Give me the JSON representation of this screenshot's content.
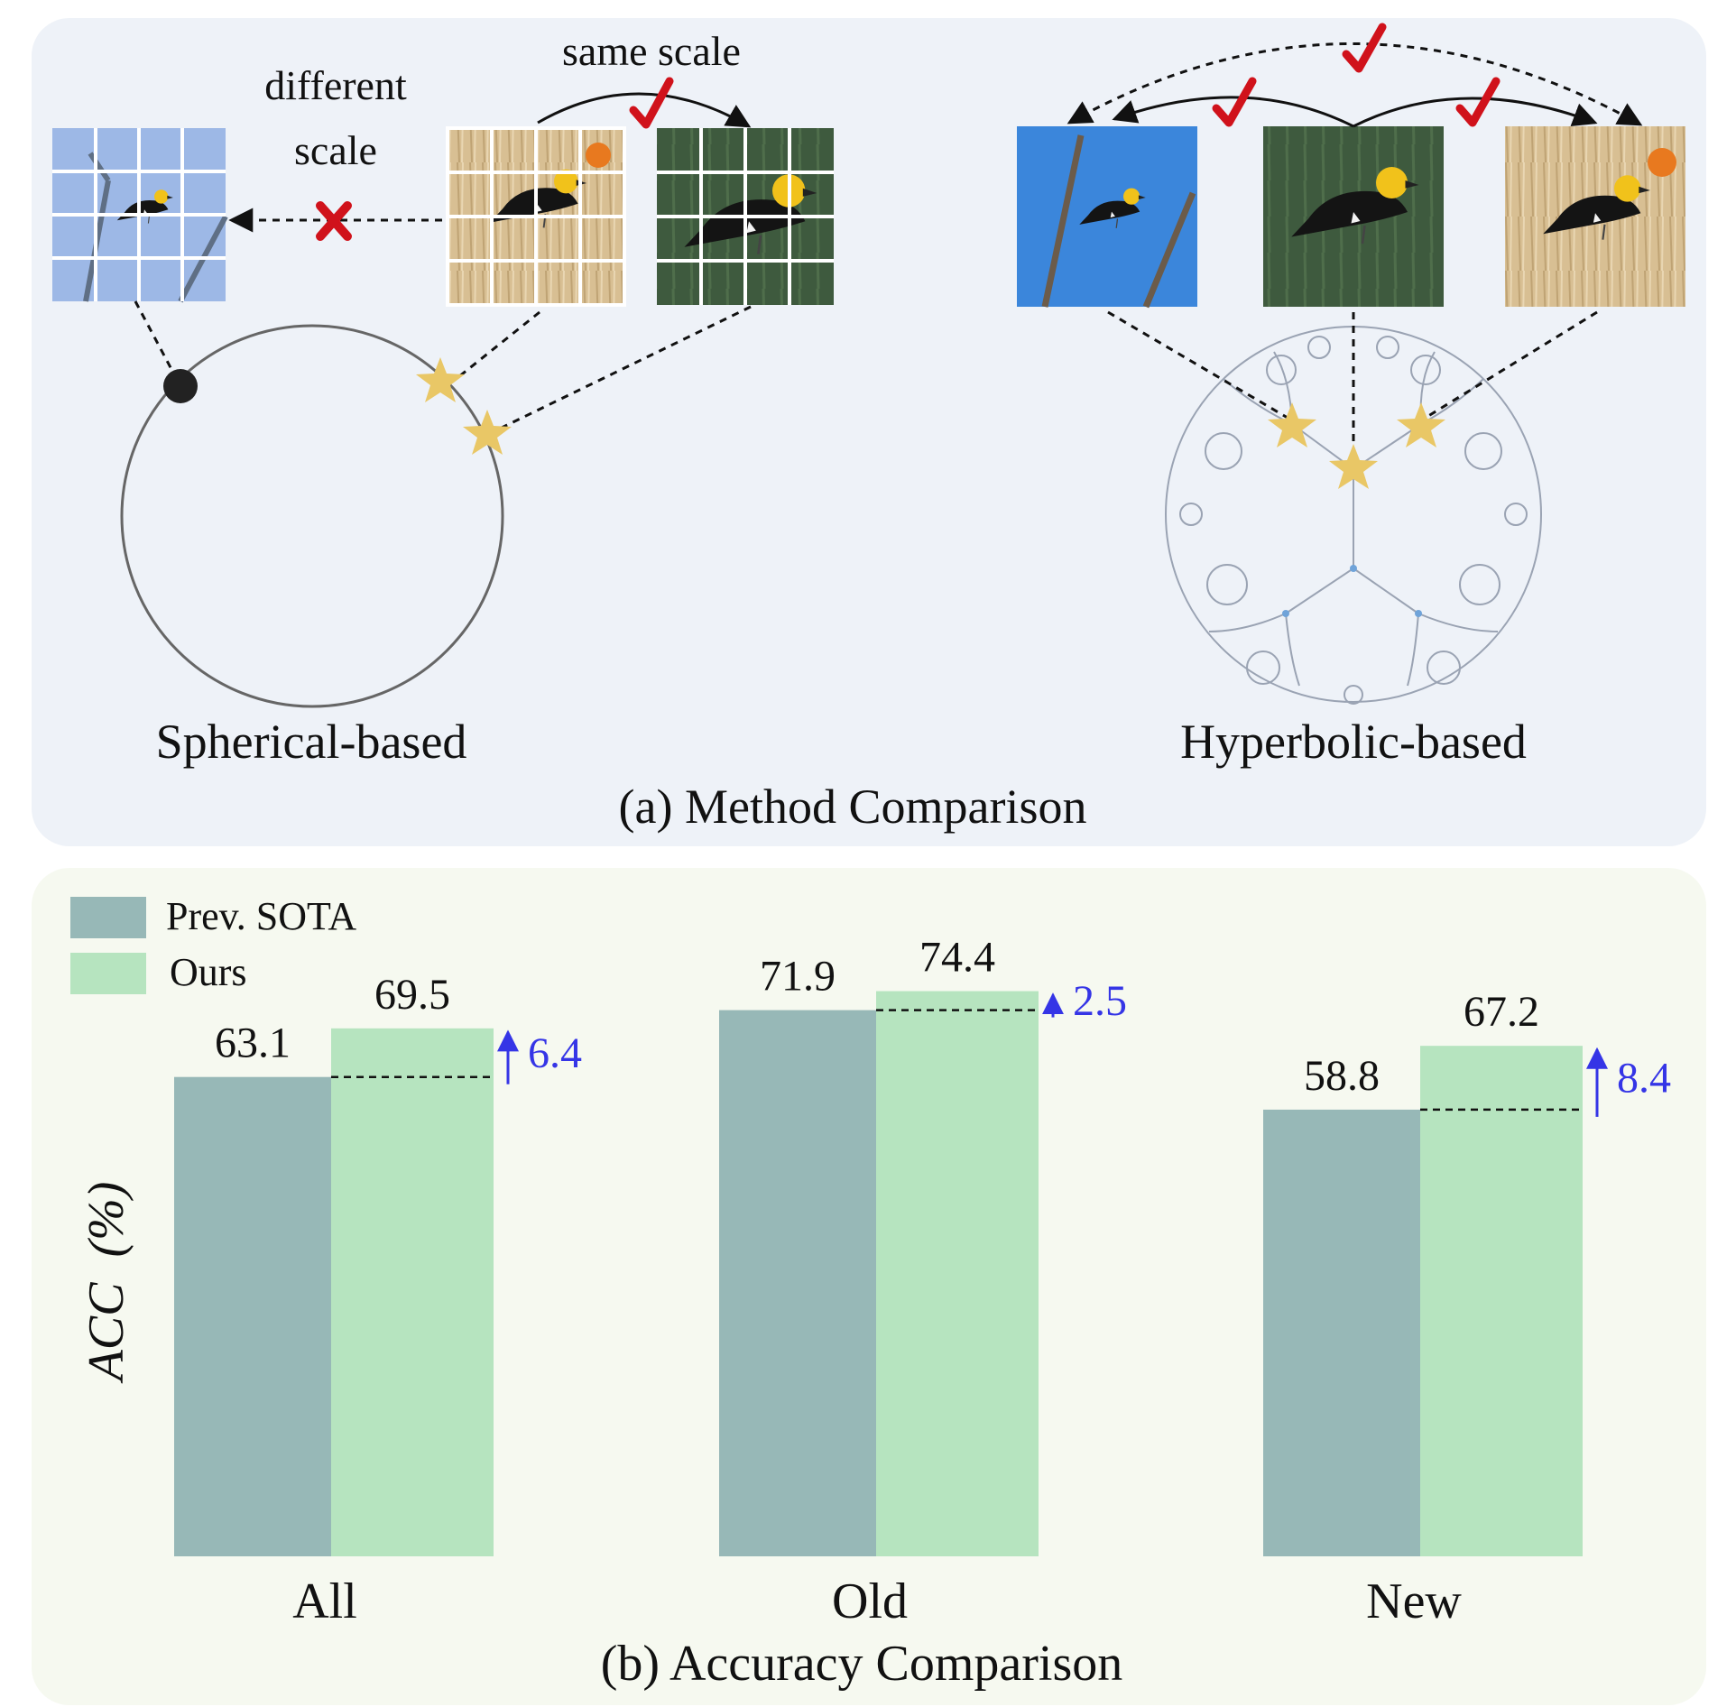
{
  "panel_a": {
    "caption": "(a) Method Comparison",
    "spherical": {
      "label": "Spherical-based",
      "different_scale_line1": "different",
      "different_scale_line2": "scale",
      "same_scale": "same scale"
    },
    "hyperbolic": {
      "label": "Hyperbolic-based"
    },
    "colors": {
      "panel_bg": "#eef2f8",
      "star": "#e9c766",
      "check": "#d0121b",
      "cross": "#d0121b",
      "grid_blue": "#9db8e6"
    },
    "icons": [
      "check-icon",
      "cross-icon",
      "star-icon",
      "bird-image",
      "dot-icon"
    ]
  },
  "panel_b": {
    "caption": "(b) Accuracy Comparison",
    "colors": {
      "panel_bg": "#f6f9f0",
      "prev": "#97b8b7",
      "ours": "#b6e4bf",
      "gain": "#3535e6"
    },
    "chart_data": {
      "type": "bar",
      "categories": [
        "All",
        "Old",
        "New"
      ],
      "ylabel": "ACC  (%)",
      "series": [
        {
          "name": "Prev. SOTA",
          "values": [
            63.1,
            71.9,
            58.8
          ],
          "labels": [
            "63.1",
            "71.9",
            "58.8"
          ]
        },
        {
          "name": "Ours",
          "values": [
            69.5,
            74.4,
            67.2
          ],
          "labels": [
            "69.5",
            "74.4",
            "67.2"
          ]
        }
      ],
      "gains": [
        "6.4",
        "2.5",
        "8.4"
      ],
      "legend_position": "top-left",
      "grid": false
    }
  }
}
